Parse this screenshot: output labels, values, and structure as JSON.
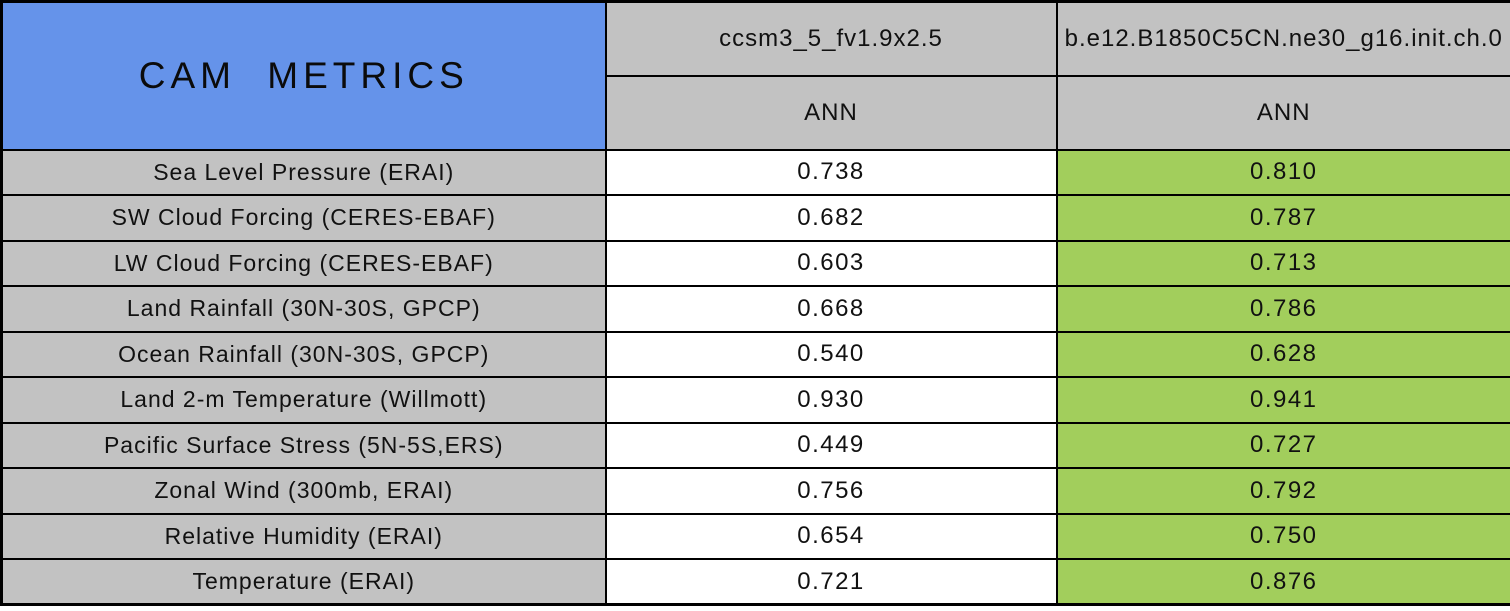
{
  "colors": {
    "blue": "#6593EA",
    "gray": "#C2C2C2",
    "green": "#A2CE5C",
    "white": "#FFFFFF",
    "border": "#000000"
  },
  "chart_data": {
    "type": "table",
    "title": "CAM METRICS",
    "columns": [
      {
        "model": "ccsm3_5_fv1.9x2.5",
        "season": "ANN"
      },
      {
        "model": "b.e12.B1850C5CN.ne30_g16.init.ch.0",
        "season": "ANN"
      }
    ],
    "rows": [
      {
        "label": "Sea Level Pressure (ERAI)",
        "values": [
          "0.738",
          "0.810"
        ]
      },
      {
        "label": "SW Cloud Forcing (CERES-EBAF)",
        "values": [
          "0.682",
          "0.787"
        ]
      },
      {
        "label": "LW Cloud Forcing (CERES-EBAF)",
        "values": [
          "0.603",
          "0.713"
        ]
      },
      {
        "label": "Land Rainfall (30N-30S, GPCP)",
        "values": [
          "0.668",
          "0.786"
        ]
      },
      {
        "label": "Ocean Rainfall (30N-30S, GPCP)",
        "values": [
          "0.540",
          "0.628"
        ]
      },
      {
        "label": "Land 2-m Temperature (Willmott)",
        "values": [
          "0.930",
          "0.941"
        ]
      },
      {
        "label": "Pacific Surface Stress (5N-5S,ERS)",
        "values": [
          "0.449",
          "0.727"
        ]
      },
      {
        "label": "Zonal Wind (300mb, ERAI)",
        "values": [
          "0.756",
          "0.792"
        ]
      },
      {
        "label": "Relative Humidity (ERAI)",
        "values": [
          "0.654",
          "0.750"
        ]
      },
      {
        "label": "Temperature (ERAI)",
        "values": [
          "0.721",
          "0.876"
        ]
      }
    ]
  }
}
